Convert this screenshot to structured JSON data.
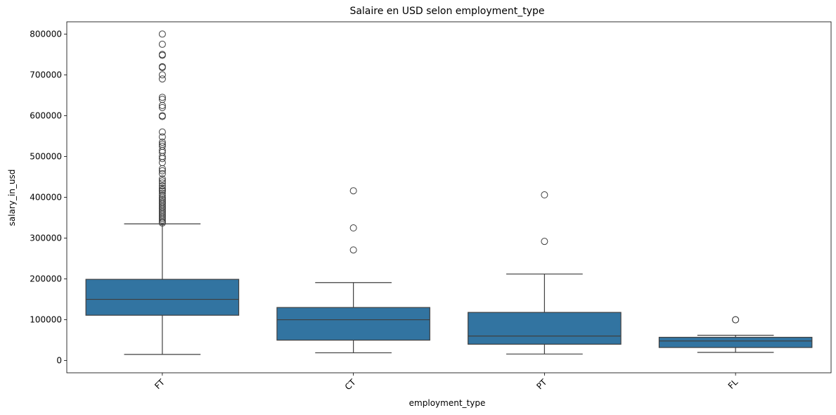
{
  "chart_data": {
    "type": "box",
    "title": "Salaire en USD selon employment_type",
    "xlabel": "employment_type",
    "ylabel": "salary_in_usd",
    "ylim": [
      -30000,
      830000
    ],
    "yticks": [
      0,
      100000,
      200000,
      300000,
      400000,
      500000,
      600000,
      700000,
      800000
    ],
    "ytick_labels": [
      "0",
      "100000",
      "200000",
      "300000",
      "400000",
      "500000",
      "600000",
      "700000",
      "800000"
    ],
    "categories": [
      "FT",
      "CT",
      "PT",
      "FL"
    ],
    "box_color": "#3274a1",
    "line_color": "#3f3f3f",
    "boxes": [
      {
        "category": "FT",
        "whisker_low": 15000,
        "q1": 111000,
        "median": 150000,
        "q3": 199000,
        "whisker_high": 335000,
        "outliers": [
          800000,
          775000,
          750000,
          748000,
          720000,
          718000,
          700000,
          690000,
          645000,
          640000,
          625000,
          620000,
          600000,
          598000,
          560000,
          548000,
          535000,
          530000,
          525000,
          515000,
          510000,
          500000,
          495000,
          485000,
          470000,
          465000,
          458000,
          445000,
          440000,
          435000,
          428000,
          422000,
          418000,
          415000,
          410000,
          405000,
          400000,
          396000,
          392000,
          388000,
          384000,
          380000,
          376000,
          372000,
          368000,
          364000,
          360000,
          356000,
          352000,
          348000,
          344000,
          340000,
          337000
        ]
      },
      {
        "category": "CT",
        "whisker_low": 19000,
        "q1": 50000,
        "median": 100000,
        "q3": 130000,
        "whisker_high": 191000,
        "outliers": [
          416000,
          325000,
          271000
        ]
      },
      {
        "category": "PT",
        "whisker_low": 16000,
        "q1": 40000,
        "median": 60000,
        "q3": 118000,
        "whisker_high": 212000,
        "outliers": [
          406000,
          292000
        ]
      },
      {
        "category": "FL",
        "whisker_low": 20000,
        "q1": 32000,
        "median": 48000,
        "q3": 57000,
        "whisker_high": 62000,
        "outliers": [
          100000,
          100000
        ]
      }
    ]
  }
}
